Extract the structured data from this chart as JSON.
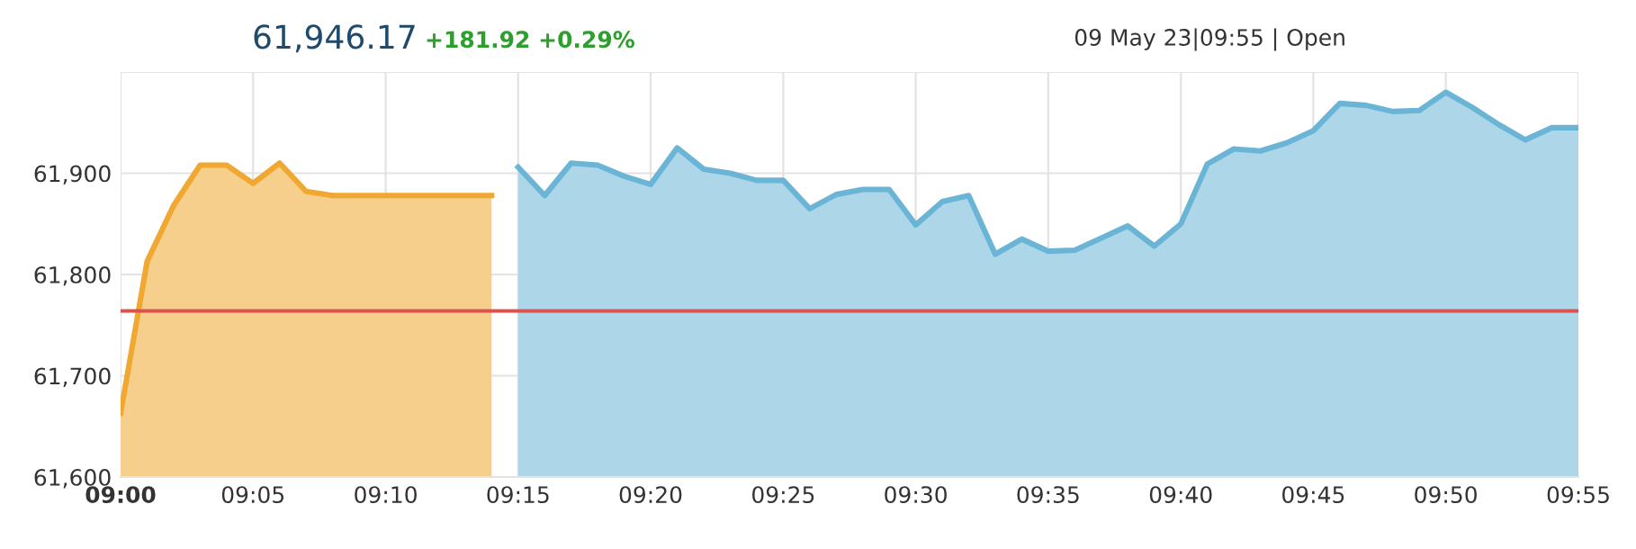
{
  "chart_data": {
    "type": "area",
    "title": "61,946.17",
    "subtitle": "+181.92 +0.29%",
    "annotations": [
      "09 May 23|09:55 | Open"
    ],
    "series": [
      {
        "color": "#f0a830",
        "x": [
          9,
          9.0167,
          9.0333,
          9.05,
          9.0667,
          9.0833,
          9.1,
          9.1167,
          9.1333,
          9.15,
          9.1667,
          9.1833,
          9.2,
          9.2167,
          9.2333
        ],
        "values": [
          61663,
          61813,
          61868,
          61908,
          61908,
          61890,
          61910,
          61882,
          61878,
          61878,
          61878,
          61878,
          61878,
          61878,
          61878
        ]
      },
      {
        "color": "#6ab4d6",
        "x": [
          9.25,
          9.2667,
          9.2833,
          9.3,
          9.3167,
          9.3333,
          9.35,
          9.3667,
          9.3833,
          9.4,
          9.4167,
          9.4333,
          9.45,
          9.4667,
          9.4833,
          9.5,
          9.5167,
          9.5333,
          9.55,
          9.5667,
          9.5833,
          9.6,
          9.6167,
          9.6333,
          9.65,
          9.6667,
          9.6833,
          9.7,
          9.7167,
          9.7333,
          9.75,
          9.7667,
          9.7833,
          9.8,
          9.8167,
          9.8333,
          9.85,
          9.8667,
          9.8833,
          9.9,
          9.9167
        ],
        "values": [
          61906,
          61878,
          61910,
          61908,
          61897,
          61889,
          61925,
          61904,
          61900,
          61893,
          61893,
          61865,
          61879,
          61884,
          61884,
          61849,
          61872,
          61878,
          61820,
          61835,
          61823,
          61824,
          61836,
          61848,
          61828,
          61850,
          61909,
          61924,
          61922,
          61930,
          61942,
          61969,
          61967,
          61961,
          61962,
          61980,
          61965,
          61948,
          61933,
          61945,
          61945
        ]
      }
    ],
    "xlim": [
      9,
      9.9167
    ],
    "xticks": [
      {
        "value": 9,
        "label": "09:00"
      },
      {
        "value": 9.0833,
        "label": "09:05"
      },
      {
        "value": 9.1667,
        "label": "09:10"
      },
      {
        "value": 9.25,
        "label": "09:15"
      },
      {
        "value": 9.3333,
        "label": "09:20"
      },
      {
        "value": 9.4167,
        "label": "09:25"
      },
      {
        "value": 9.5,
        "label": "09:30"
      },
      {
        "value": 9.5833,
        "label": "09:35"
      },
      {
        "value": 9.6667,
        "label": "09:40"
      },
      {
        "value": 9.75,
        "label": "09:45"
      },
      {
        "value": 9.8333,
        "label": "09:50"
      },
      {
        "value": 9.9167,
        "label": "09:55"
      }
    ],
    "ylim": [
      61600,
      62000
    ],
    "yticks": [
      {
        "value": 61600,
        "label": "61,600"
      },
      {
        "value": 61700,
        "label": "61,700"
      },
      {
        "value": 61800,
        "label": "61,800"
      },
      {
        "value": 61900,
        "label": "61,900"
      },
      {
        "value": 62000,
        "label": null
      }
    ],
    "ref_lines": [
      {
        "axis": "y",
        "value": 61764,
        "label": null,
        "color": "#d9534f",
        "line_style": "solid"
      }
    ],
    "grid": true
  }
}
